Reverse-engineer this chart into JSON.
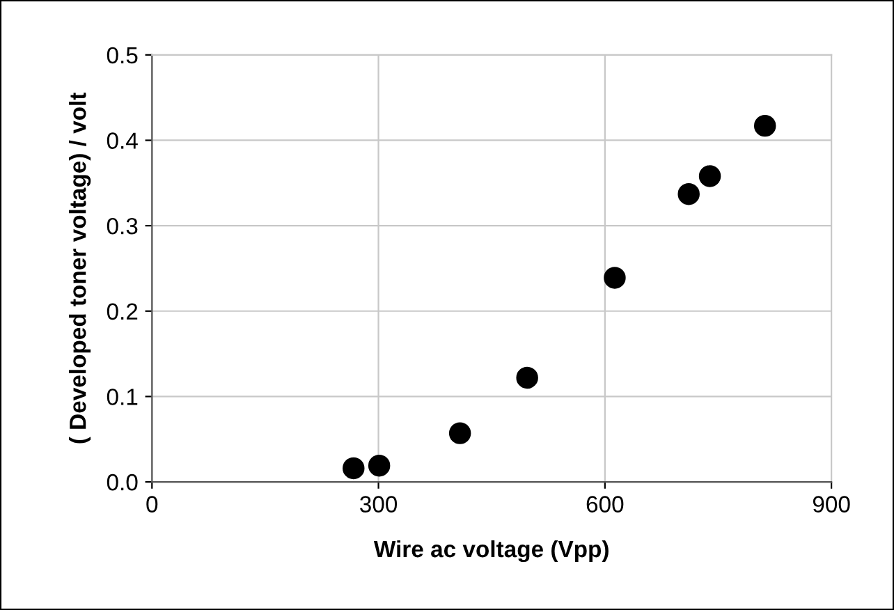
{
  "chart_data": {
    "type": "scatter",
    "xlabel": "Wire ac voltage (Vpp)",
    "ylabel": "( Developed toner voltage) / volt",
    "x": [
      267,
      301,
      408,
      497,
      613,
      711,
      739,
      812
    ],
    "values": [
      0.016,
      0.019,
      0.057,
      0.122,
      0.239,
      0.337,
      0.358,
      0.417
    ],
    "color": "#000000",
    "marker": "circle",
    "xlim": [
      0,
      900
    ],
    "xticks": [
      0,
      300,
      600,
      900
    ],
    "ylim": [
      0,
      0.5
    ],
    "yticks": [
      {
        "value": 0,
        "label": "0.0"
      },
      0.1,
      0.2,
      0.3,
      0.4,
      0.5
    ],
    "grid": true
  }
}
